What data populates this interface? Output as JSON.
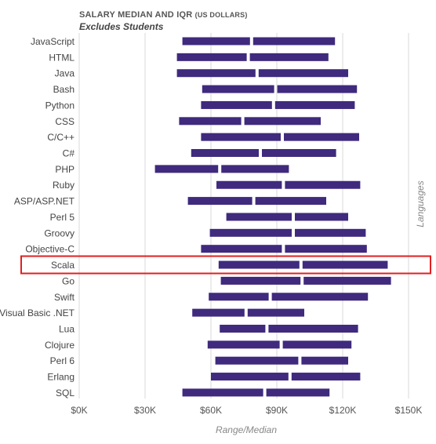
{
  "chart_data": {
    "type": "range-bar",
    "title": "SALARY MEDIAN AND IQR",
    "title_unit": "(US DOLLARS)",
    "subtitle": "Excludes Students",
    "xlabel": "Range/Median",
    "ylabel": "Languages",
    "xlim": [
      0,
      160000
    ],
    "x_ticks": [
      0,
      30000,
      60000,
      90000,
      120000,
      150000
    ],
    "x_tick_labels": [
      "$0K",
      "$30K",
      "$60K",
      "$90K",
      "$120K",
      "$150K"
    ],
    "grid": true,
    "bar_color": "#3f2a7e",
    "highlight_color": "#e02020",
    "highlighted": "Scala",
    "categories": [
      "JavaScript",
      "HTML",
      "Java",
      "Bash",
      "Python",
      "CSS",
      "C/C++",
      "C#",
      "PHP",
      "Ruby",
      "ASP/ASP.NET",
      "Perl 5",
      "Groovy",
      "Objective-C",
      "Scala",
      "Go",
      "Swift",
      "Visual Basic .NET",
      "Lua",
      "Clojure",
      "Perl 6",
      "Erlang",
      "SQL"
    ],
    "q1": [
      47000,
      44500,
      44500,
      56000,
      55500,
      45500,
      55500,
      51000,
      34500,
      62500,
      49500,
      67000,
      59500,
      55500,
      63500,
      64500,
      59000,
      51500,
      64000,
      58500,
      62000,
      60000,
      47000
    ],
    "median": [
      78500,
      77000,
      81000,
      89500,
      88500,
      74500,
      92500,
      82500,
      64000,
      93000,
      79500,
      97500,
      97500,
      93000,
      101000,
      101500,
      87000,
      76000,
      85500,
      92000,
      100500,
      96000,
      84500
    ],
    "q3": [
      116500,
      113500,
      122500,
      126500,
      125500,
      110000,
      127500,
      117000,
      95500,
      128000,
      112500,
      122500,
      130500,
      131000,
      140500,
      142000,
      131500,
      102500,
      127000,
      124000,
      122500,
      128000,
      114000
    ]
  }
}
